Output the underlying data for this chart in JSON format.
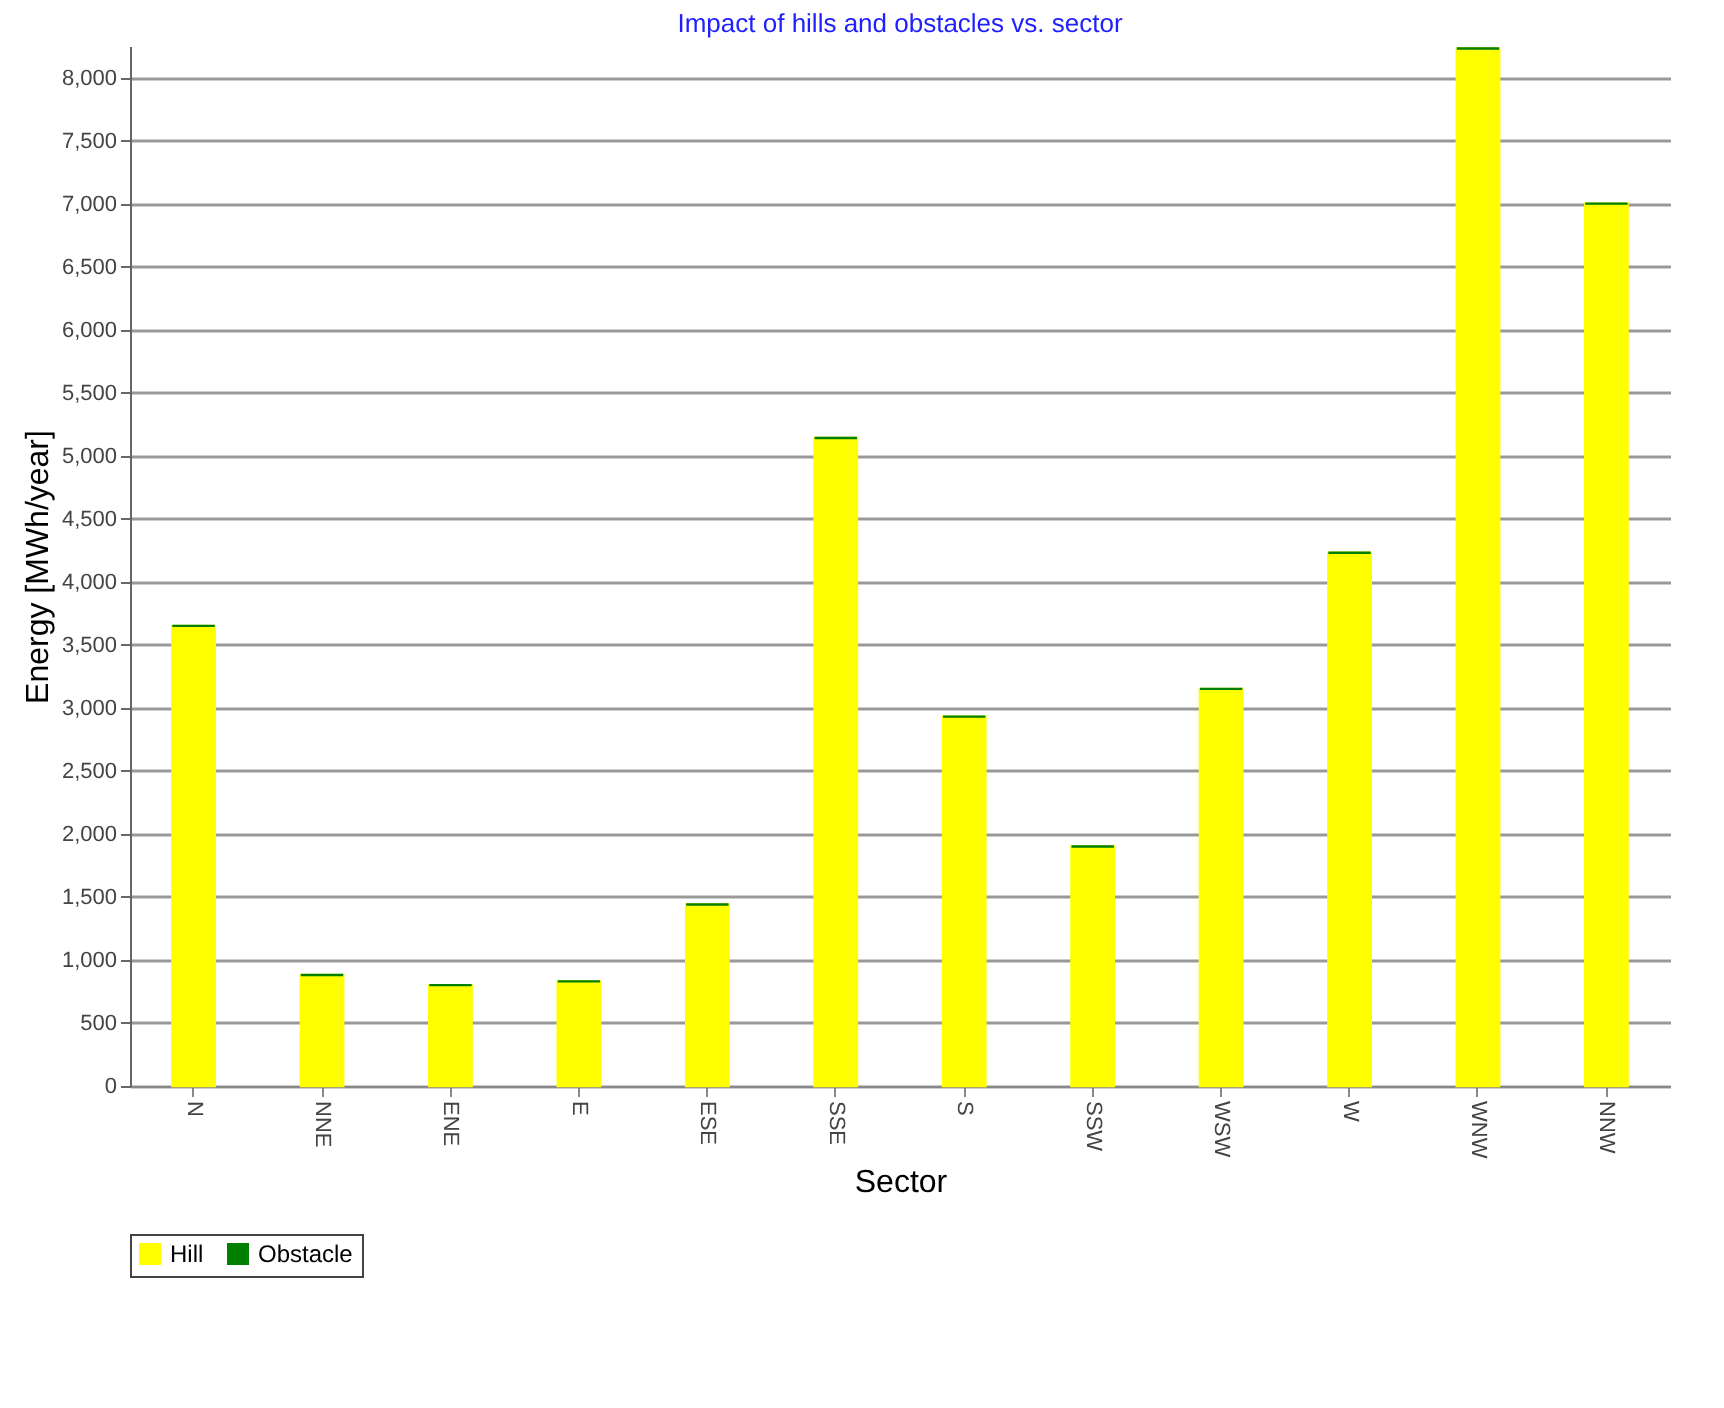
{
  "chart_data": {
    "type": "bar",
    "title": "Impact of hills and obstacles vs. sector",
    "xlabel": "Sector",
    "ylabel": "Energy [MWh/year]",
    "categories": [
      "N",
      "NNE",
      "ENE",
      "E",
      "ESE",
      "SSE",
      "S",
      "SSW",
      "WSW",
      "W",
      "WNW",
      "NNW"
    ],
    "series": [
      {
        "name": "Hill",
        "color": "#ffff00",
        "values": [
          3650,
          880,
          800,
          830,
          1440,
          5140,
          2930,
          1900,
          3150,
          4230,
          8230,
          7000
        ]
      },
      {
        "name": "Obstacle",
        "color": "#008000",
        "values": [
          0,
          0,
          0,
          0,
          0,
          0,
          0,
          0,
          0,
          0,
          0,
          0
        ]
      }
    ],
    "stacked": true,
    "ylim": [
      0,
      8250
    ],
    "yticks": [
      0,
      {
        "value": 500,
        "label": "500"
      },
      {
        "value": 1000,
        "label": "1,000"
      },
      {
        "value": 1500,
        "label": "1,500"
      },
      {
        "value": 2000,
        "label": "2,000"
      },
      {
        "value": 2500,
        "label": "2,500"
      },
      {
        "value": 3000,
        "label": "3,000"
      },
      {
        "value": 3500,
        "label": "3,500"
      },
      {
        "value": 4000,
        "label": "4,000"
      },
      {
        "value": 4500,
        "label": "4,500"
      },
      {
        "value": 5000,
        "label": "5,000"
      },
      {
        "value": 5500,
        "label": "5,500"
      },
      {
        "value": 6000,
        "label": "6,000"
      },
      {
        "value": 6500,
        "label": "6,500"
      },
      {
        "value": 7000,
        "label": "7,000"
      },
      {
        "value": 7500,
        "label": "7,500"
      },
      {
        "value": 8000,
        "label": "8,000"
      }
    ],
    "grid": "y",
    "legend": "bottom"
  }
}
